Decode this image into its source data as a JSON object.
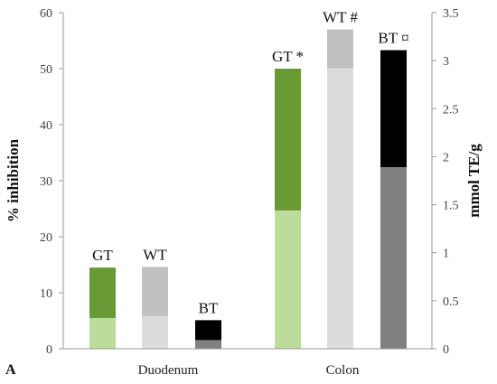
{
  "chart_data": {
    "type": "bar",
    "panel_label": "A",
    "categories": [
      "Duodenum",
      "Colon"
    ],
    "ylabel": "% inhibition",
    "y2label": "mmol TE/g",
    "ylim": [
      0,
      60
    ],
    "y2lim": [
      0,
      3.5
    ],
    "yticks": [
      "0",
      "10",
      "20",
      "30",
      "40",
      "50",
      "60"
    ],
    "y2ticks": [
      "0",
      "0.5",
      "1",
      "1.5",
      "2",
      "2.5",
      "3",
      "3.5"
    ],
    "grid": false,
    "bars": [
      {
        "label": "GT",
        "category": "Duodenum",
        "inhibition_pct": 14.5,
        "mmol_te_g": 0.32,
        "color_top": "#6a9a35",
        "color_bottom": "#bcdc9c"
      },
      {
        "label": "WT",
        "category": "Duodenum",
        "inhibition_pct": 14.6,
        "mmol_te_g": 0.34,
        "color_top": "#c0c0c0",
        "color_bottom": "#dcdcdc"
      },
      {
        "label": "BT",
        "category": "Duodenum",
        "inhibition_pct": 5.1,
        "mmol_te_g": 0.09,
        "color_top": "#000000",
        "color_bottom": "#808080"
      },
      {
        "label": "GT *",
        "category": "Colon",
        "inhibition_pct": 50.0,
        "mmol_te_g": 1.44,
        "color_top": "#6a9a35",
        "color_bottom": "#bcdc9c"
      },
      {
        "label": "WT #",
        "category": "Colon",
        "inhibition_pct": 57.0,
        "mmol_te_g": 2.92,
        "color_top": "#c0c0c0",
        "color_bottom": "#dcdcdc"
      },
      {
        "label": "BT ¤",
        "category": "Colon",
        "inhibition_pct": 53.3,
        "mmol_te_g": 1.89,
        "color_top": "#000000",
        "color_bottom": "#808080"
      }
    ]
  }
}
